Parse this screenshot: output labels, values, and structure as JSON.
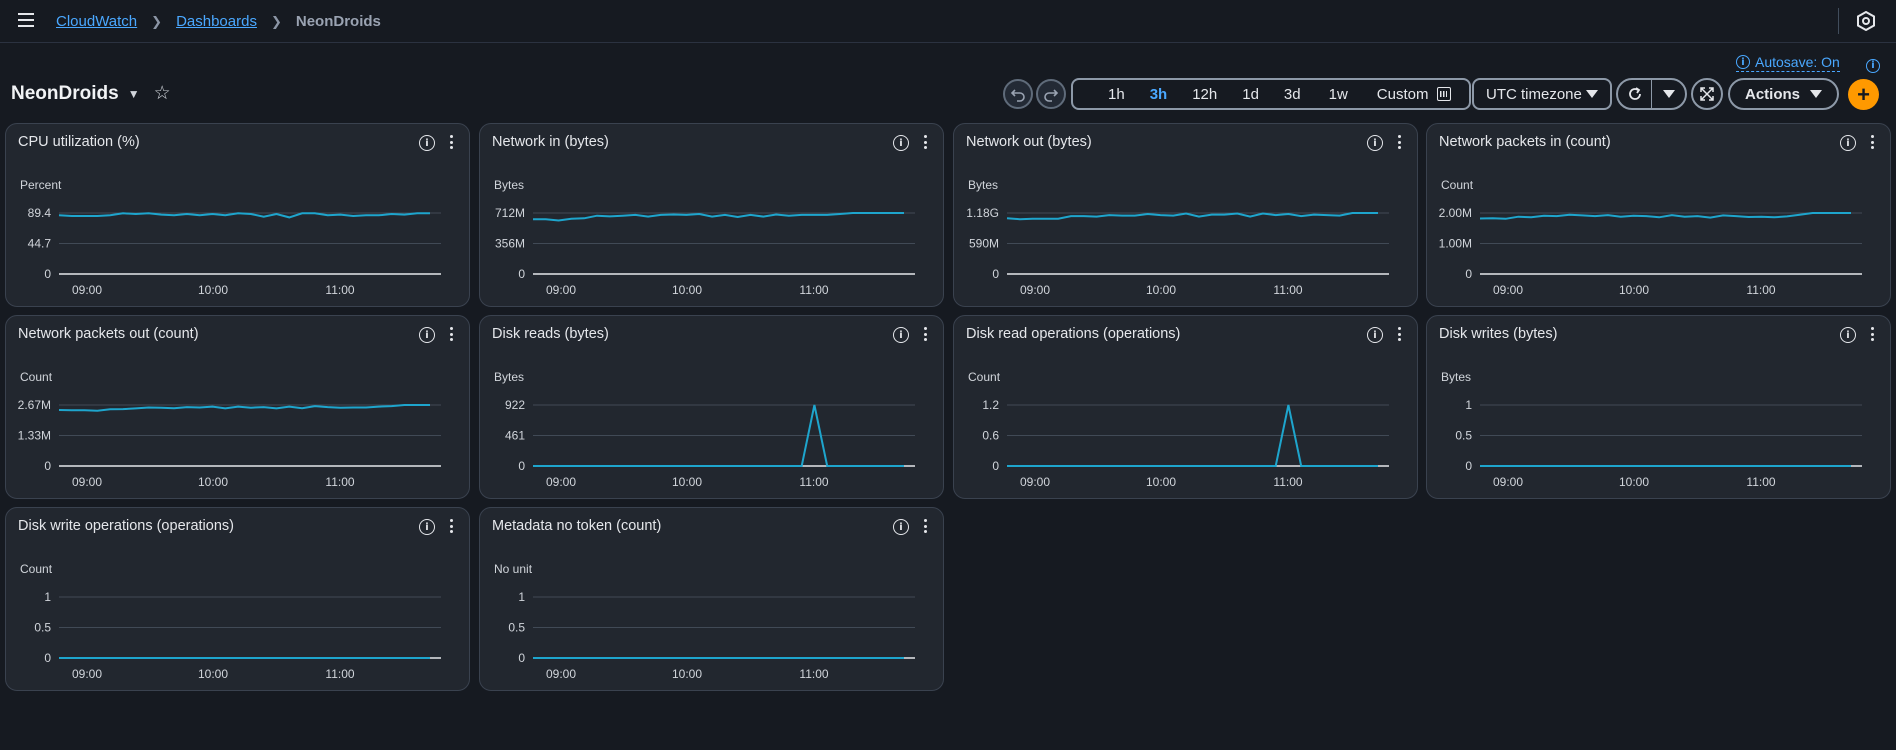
{
  "breadcrumb": {
    "items": [
      "CloudWatch",
      "Dashboards"
    ],
    "current": "NeonDroids"
  },
  "autosave": {
    "label": "Autosave: On"
  },
  "dashboard": {
    "title": "NeonDroids"
  },
  "toolbar": {
    "ranges": [
      "1h",
      "3h",
      "12h",
      "1d",
      "3d",
      "1w"
    ],
    "active_range": "3h",
    "custom_label": "Custom",
    "timezone": "UTC timezone",
    "actions_label": "Actions"
  },
  "colors": {
    "accent": "#4aa8ff",
    "series": "#1ea5cd",
    "add": "#ff9900"
  },
  "widgets": [
    {
      "title": "CPU utilization (%)",
      "unit": "Percent",
      "yticks": [
        "89.4",
        "44.7",
        "0"
      ]
    },
    {
      "title": "Network in (bytes)",
      "unit": "Bytes",
      "yticks": [
        "712M",
        "356M",
        "0"
      ]
    },
    {
      "title": "Network out (bytes)",
      "unit": "Bytes",
      "yticks": [
        "1.18G",
        "590M",
        "0"
      ]
    },
    {
      "title": "Network packets in (count)",
      "unit": "Count",
      "yticks": [
        "2.00M",
        "1.00M",
        "0"
      ]
    },
    {
      "title": "Network packets out (count)",
      "unit": "Count",
      "yticks": [
        "2.67M",
        "1.33M",
        "0"
      ]
    },
    {
      "title": "Disk reads (bytes)",
      "unit": "Bytes",
      "yticks": [
        "922",
        "461",
        "0"
      ]
    },
    {
      "title": "Disk read operations (operations)",
      "unit": "Count",
      "yticks": [
        "1.2",
        "0.6",
        "0"
      ]
    },
    {
      "title": "Disk writes (bytes)",
      "unit": "Bytes",
      "yticks": [
        "1",
        "0.5",
        "0"
      ]
    },
    {
      "title": "Disk write operations (operations)",
      "unit": "Count",
      "yticks": [
        "1",
        "0.5",
        "0"
      ]
    },
    {
      "title": "Metadata no token (count)",
      "unit": "No unit",
      "yticks": [
        "1",
        "0.5",
        "0"
      ]
    }
  ],
  "chart_data": [
    {
      "type": "line",
      "title": "CPU utilization (%)",
      "ylabel": "Percent",
      "ylim": [
        0,
        89.4
      ],
      "xticks": [
        "09:00",
        "10:00",
        "11:00"
      ],
      "series": [
        {
          "name": "CPU utilization",
          "values": [
            86,
            85,
            85,
            85,
            86,
            89,
            88,
            89,
            87,
            86,
            88,
            86,
            88,
            86,
            89,
            88,
            84,
            88,
            83,
            89,
            89,
            86,
            87,
            85,
            86,
            86,
            88,
            87,
            89,
            89
          ]
        }
      ]
    },
    {
      "type": "line",
      "title": "Network in (bytes)",
      "ylabel": "Bytes",
      "ylim": [
        0,
        712
      ],
      "xticks": [
        "09:00",
        "10:00",
        "11:00"
      ],
      "series": [
        {
          "name": "Network in",
          "values": [
            640,
            640,
            625,
            645,
            650,
            680,
            672,
            680,
            690,
            670,
            690,
            695,
            690,
            700,
            670,
            690,
            665,
            690,
            670,
            695,
            680,
            690,
            690,
            690,
            700,
            712,
            712,
            712,
            712,
            712
          ]
        }
      ]
    },
    {
      "type": "line",
      "title": "Network out (bytes)",
      "ylabel": "Bytes",
      "ylim": [
        0,
        1.18
      ],
      "xticks": [
        "09:00",
        "10:00",
        "11:00"
      ],
      "series": [
        {
          "name": "Network out",
          "values": [
            1.08,
            1.06,
            1.07,
            1.07,
            1.07,
            1.12,
            1.12,
            1.11,
            1.14,
            1.13,
            1.13,
            1.16,
            1.14,
            1.13,
            1.17,
            1.11,
            1.15,
            1.15,
            1.17,
            1.11,
            1.17,
            1.14,
            1.16,
            1.12,
            1.15,
            1.14,
            1.13,
            1.18,
            1.18,
            1.18
          ]
        }
      ]
    },
    {
      "type": "line",
      "title": "Network packets in (count)",
      "ylabel": "Count",
      "ylim": [
        0,
        2.0
      ],
      "xticks": [
        "09:00",
        "10:00",
        "11:00"
      ],
      "series": [
        {
          "name": "Network packets in",
          "values": [
            1.82,
            1.83,
            1.81,
            1.88,
            1.86,
            1.91,
            1.9,
            1.94,
            1.92,
            1.9,
            1.93,
            1.88,
            1.91,
            1.9,
            1.86,
            1.93,
            1.88,
            1.9,
            1.85,
            1.92,
            1.9,
            1.87,
            1.88,
            1.86,
            1.89,
            1.94,
            2.0,
            2.0,
            2.0,
            2.0
          ]
        }
      ]
    },
    {
      "type": "line",
      "title": "Network packets out (count)",
      "ylabel": "Count",
      "ylim": [
        0,
        2.67
      ],
      "xticks": [
        "09:00",
        "10:00",
        "11:00"
      ],
      "series": [
        {
          "name": "Network packets out",
          "values": [
            2.45,
            2.44,
            2.44,
            2.42,
            2.48,
            2.49,
            2.52,
            2.56,
            2.55,
            2.53,
            2.58,
            2.56,
            2.6,
            2.52,
            2.6,
            2.55,
            2.58,
            2.52,
            2.6,
            2.53,
            2.62,
            2.58,
            2.55,
            2.56,
            2.56,
            2.6,
            2.62,
            2.67,
            2.67,
            2.67
          ]
        }
      ]
    },
    {
      "type": "line",
      "title": "Disk reads (bytes)",
      "ylabel": "Bytes",
      "ylim": [
        0,
        922
      ],
      "xticks": [
        "09:00",
        "10:00",
        "11:00"
      ],
      "series": [
        {
          "name": "Disk reads",
          "values": [
            0,
            0,
            0,
            0,
            0,
            0,
            0,
            0,
            0,
            0,
            0,
            0,
            0,
            0,
            0,
            0,
            0,
            0,
            0,
            0,
            0,
            0,
            922,
            0,
            0,
            0,
            0,
            0,
            0,
            0
          ]
        }
      ]
    },
    {
      "type": "line",
      "title": "Disk read operations (operations)",
      "ylabel": "Count",
      "ylim": [
        0,
        1.2
      ],
      "xticks": [
        "09:00",
        "10:00",
        "11:00"
      ],
      "series": [
        {
          "name": "Disk read operations",
          "values": [
            0,
            0,
            0,
            0,
            0,
            0,
            0,
            0,
            0,
            0,
            0,
            0,
            0,
            0,
            0,
            0,
            0,
            0,
            0,
            0,
            0,
            0,
            1.2,
            0,
            0,
            0,
            0,
            0,
            0,
            0
          ]
        }
      ]
    },
    {
      "type": "line",
      "title": "Disk writes (bytes)",
      "ylabel": "Bytes",
      "ylim": [
        0,
        1
      ],
      "xticks": [
        "09:00",
        "10:00",
        "11:00"
      ],
      "series": [
        {
          "name": "Disk writes",
          "values": [
            0,
            0,
            0,
            0,
            0,
            0,
            0,
            0,
            0,
            0,
            0,
            0,
            0,
            0,
            0,
            0,
            0,
            0,
            0,
            0,
            0,
            0,
            0,
            0,
            0,
            0,
            0,
            0,
            0,
            0
          ]
        }
      ]
    },
    {
      "type": "line",
      "title": "Disk write operations (operations)",
      "ylabel": "Count",
      "ylim": [
        0,
        1
      ],
      "xticks": [
        "09:00",
        "10:00",
        "11:00"
      ],
      "series": [
        {
          "name": "Disk write operations",
          "values": [
            0,
            0,
            0,
            0,
            0,
            0,
            0,
            0,
            0,
            0,
            0,
            0,
            0,
            0,
            0,
            0,
            0,
            0,
            0,
            0,
            0,
            0,
            0,
            0,
            0,
            0,
            0,
            0,
            0,
            0
          ]
        }
      ]
    },
    {
      "type": "line",
      "title": "Metadata no token (count)",
      "ylabel": "No unit",
      "ylim": [
        0,
        1
      ],
      "xticks": [
        "09:00",
        "10:00",
        "11:00"
      ],
      "series": [
        {
          "name": "Metadata no token",
          "values": [
            0,
            0,
            0,
            0,
            0,
            0,
            0,
            0,
            0,
            0,
            0,
            0,
            0,
            0,
            0,
            0,
            0,
            0,
            0,
            0,
            0,
            0,
            0,
            0,
            0,
            0,
            0,
            0,
            0,
            0
          ]
        }
      ]
    }
  ]
}
